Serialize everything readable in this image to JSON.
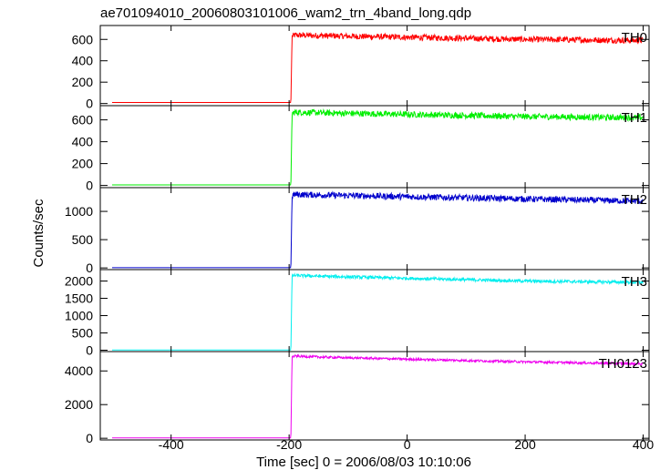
{
  "chart_data": {
    "type": "line",
    "title": "ae701094010_20060803101006_wam2_trn_4band_long.qdp",
    "xlabel": "Time [sec] 0 = 2006/08/03 10:10:06",
    "ylabel": "Counts/sec",
    "xlim": [
      -520,
      410
    ],
    "xticks": [
      -400,
      -200,
      0,
      200,
      400
    ],
    "step_time": -197,
    "panels": [
      {
        "name": "TH0",
        "color": "#ff0000",
        "ylim": [
          -20,
          730
        ],
        "yticks": [
          0,
          200,
          400,
          600
        ],
        "x": [
          -500,
          -197,
          -195,
          -190,
          -150,
          -100,
          -50,
          0,
          50,
          100,
          150,
          200,
          250,
          300,
          350,
          400
        ],
        "y": [
          10,
          10,
          630,
          640,
          635,
          630,
          625,
          620,
          615,
          610,
          605,
          600,
          598,
          595,
          592,
          590
        ],
        "noise": 28
      },
      {
        "name": "TH1",
        "color": "#00ee00",
        "ylim": [
          -20,
          730
        ],
        "yticks": [
          0,
          200,
          400,
          600
        ],
        "x": [
          -500,
          -197,
          -195,
          -190,
          -150,
          -100,
          -50,
          0,
          50,
          100,
          150,
          200,
          250,
          300,
          350,
          400
        ],
        "y": [
          5,
          5,
          660,
          670,
          665,
          660,
          655,
          650,
          645,
          640,
          635,
          630,
          628,
          625,
          622,
          620
        ],
        "noise": 28
      },
      {
        "name": "TH2",
        "color": "#0000cc",
        "ylim": [
          -30,
          1420
        ],
        "yticks": [
          0,
          500,
          1000
        ],
        "x": [
          -500,
          -197,
          -195,
          -190,
          -150,
          -100,
          -50,
          0,
          50,
          100,
          150,
          200,
          250,
          300,
          350,
          400
        ],
        "y": [
          5,
          5,
          1280,
          1300,
          1290,
          1280,
          1270,
          1260,
          1250,
          1240,
          1230,
          1220,
          1210,
          1200,
          1190,
          1180
        ],
        "noise": 55
      },
      {
        "name": "TH3",
        "color": "#00eeee",
        "ylim": [
          -40,
          2330
        ],
        "yticks": [
          0,
          500,
          1000,
          1500,
          2000
        ],
        "x": [
          -500,
          -197,
          -195,
          -190,
          -150,
          -100,
          -50,
          0,
          50,
          100,
          150,
          200,
          250,
          300,
          350,
          400
        ],
        "y": [
          5,
          5,
          2150,
          2160,
          2140,
          2120,
          2100,
          2080,
          2060,
          2040,
          2020,
          2000,
          1990,
          1980,
          1970,
          1960
        ],
        "noise": 45
      },
      {
        "name": "TH0123",
        "color": "#ee00ee",
        "ylim": [
          -100,
          5150
        ],
        "yticks": [
          0,
          2000,
          4000
        ],
        "x": [
          -500,
          -197,
          -195,
          -190,
          -150,
          -100,
          -50,
          0,
          50,
          100,
          150,
          200,
          250,
          300,
          350,
          400
        ],
        "y": [
          25,
          25,
          4850,
          4880,
          4830,
          4780,
          4740,
          4700,
          4660,
          4620,
          4580,
          4540,
          4510,
          4480,
          4450,
          4420
        ],
        "noise": 70
      }
    ]
  }
}
